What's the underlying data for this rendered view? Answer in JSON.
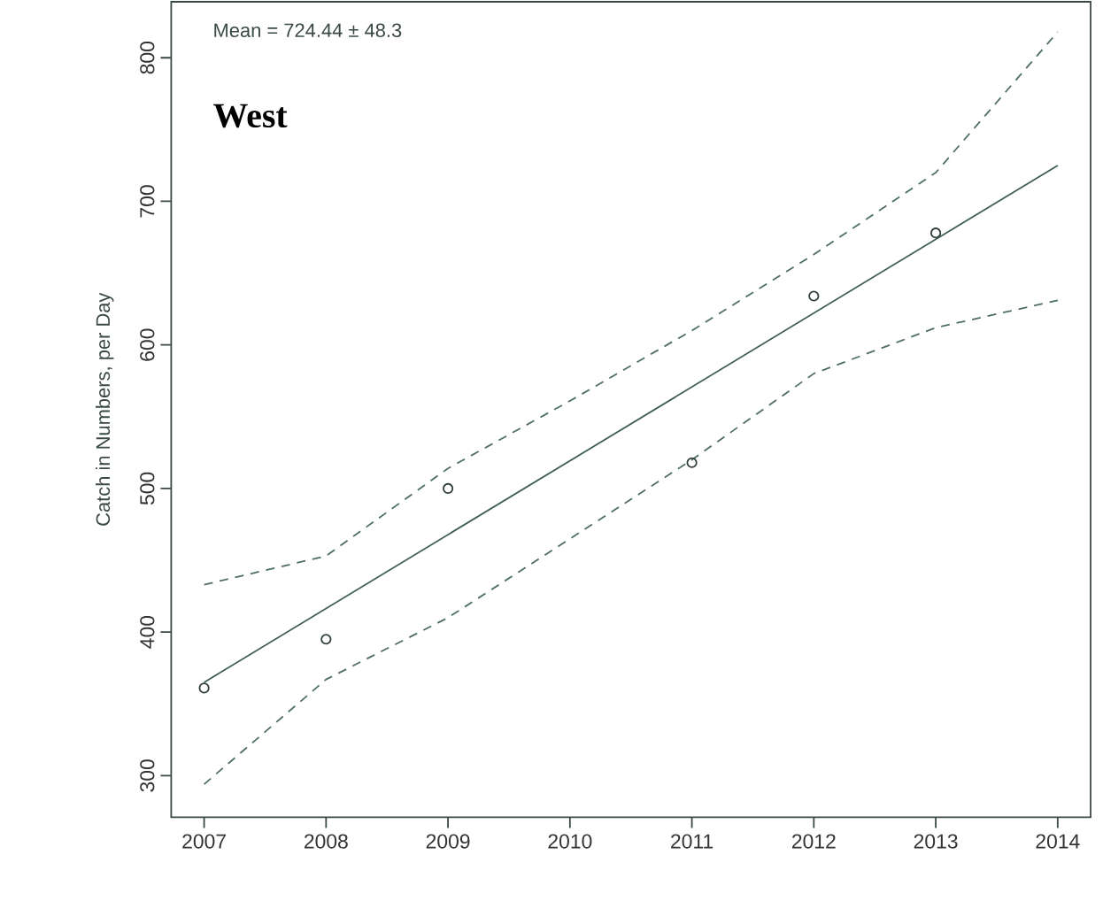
{
  "chart_data": {
    "type": "line",
    "ylabel": "Catch in Numbers, per Day",
    "annotations": [
      "Mean = 724.44 ± 48.3",
      "West"
    ],
    "xlim": [
      2006.73,
      2014.27
    ],
    "ylim": [
      271,
      839
    ],
    "xticks": [
      2007,
      2008,
      2009,
      2010,
      2011,
      2012,
      2013,
      2014
    ],
    "yticks": [
      300,
      400,
      500,
      600,
      700,
      800
    ],
    "series": [
      {
        "type": "scatter",
        "marker": "circle",
        "color": "#2f3f37",
        "x": [
          2007,
          2008,
          2009,
          2011,
          2012,
          2013
        ],
        "values": [
          361,
          395,
          500,
          518,
          634,
          678
        ]
      },
      {
        "line_style": "solid",
        "color": "#3f5f4f",
        "x": [
          2007,
          2014
        ],
        "values": [
          365,
          725
        ]
      },
      {
        "line_style": "dashed",
        "color": "#4f6f5f",
        "x": [
          2007,
          2008,
          2009,
          2010,
          2011,
          2012,
          2013,
          2014
        ],
        "values": [
          433,
          453,
          514,
          561,
          610,
          663,
          720,
          818
        ]
      },
      {
        "line_style": "dashed",
        "color": "#4f6f5f",
        "x": [
          2007,
          2008,
          2009,
          2010,
          2011,
          2012,
          2013,
          2014
        ],
        "values": [
          294,
          367,
          410,
          465,
          520,
          580,
          612,
          631
        ]
      }
    ]
  }
}
